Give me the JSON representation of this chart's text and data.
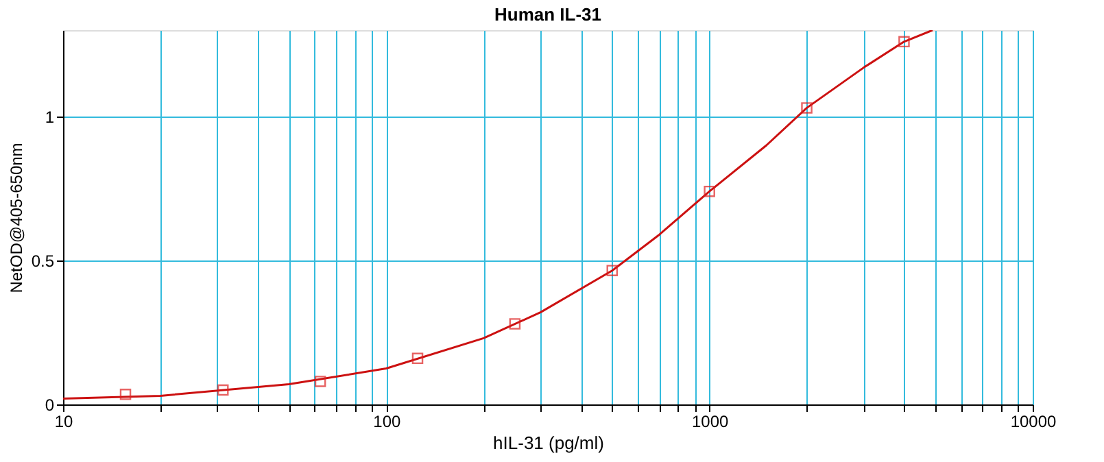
{
  "chart_data": {
    "type": "scatter",
    "title": "Human IL-31",
    "xlabel": "hIL-31 (pg/ml)",
    "ylabel": "NetOD@405-650nm",
    "log": "x",
    "grid": true,
    "xlim": [
      10,
      10000
    ],
    "xticks": [
      10,
      {
        "value": 20,
        "label": null
      },
      {
        "value": 30,
        "label": null
      },
      {
        "value": 40,
        "label": null
      },
      {
        "value": 50,
        "label": null
      },
      {
        "value": 60,
        "label": null
      },
      {
        "value": 70,
        "label": null
      },
      {
        "value": 80,
        "label": null
      },
      {
        "value": 90,
        "label": null
      },
      100,
      {
        "value": 200,
        "label": null
      },
      {
        "value": 300,
        "label": null
      },
      {
        "value": 400,
        "label": null
      },
      {
        "value": 500,
        "label": null
      },
      {
        "value": 600,
        "label": null
      },
      {
        "value": 700,
        "label": null
      },
      {
        "value": 800,
        "label": null
      },
      {
        "value": 900,
        "label": null
      },
      1000,
      {
        "value": 2000,
        "label": null
      },
      {
        "value": 3000,
        "label": null
      },
      {
        "value": 4000,
        "label": null
      },
      {
        "value": 5000,
        "label": null
      },
      {
        "value": 6000,
        "label": null
      },
      {
        "value": 7000,
        "label": null
      },
      {
        "value": 8000,
        "label": null
      },
      {
        "value": 9000,
        "label": null
      },
      10000
    ],
    "ylim": [
      0,
      1.3
    ],
    "yticks": [
      0,
      0.5,
      1
    ],
    "series": [
      {
        "type": "line",
        "color": "#cc1111",
        "marker": "none",
        "line_style": "solid",
        "x": [
          10,
          20,
          50,
          100,
          200,
          300,
          500,
          700,
          1000,
          1500,
          2000,
          3000,
          4000,
          4900
        ],
        "values": [
          0.02,
          0.03,
          0.07,
          0.125,
          0.23,
          0.32,
          0.465,
          0.59,
          0.74,
          0.9,
          1.03,
          1.17,
          1.26,
          1.3
        ]
      },
      {
        "color": "#dd2222",
        "marker": "square",
        "x": [
          15.6,
          31.25,
          62.5,
          125,
          250,
          500,
          1000,
          2000,
          4000
        ],
        "values": [
          0.035,
          0.05,
          0.08,
          0.16,
          0.28,
          0.465,
          0.74,
          1.03,
          1.26
        ]
      }
    ]
  }
}
